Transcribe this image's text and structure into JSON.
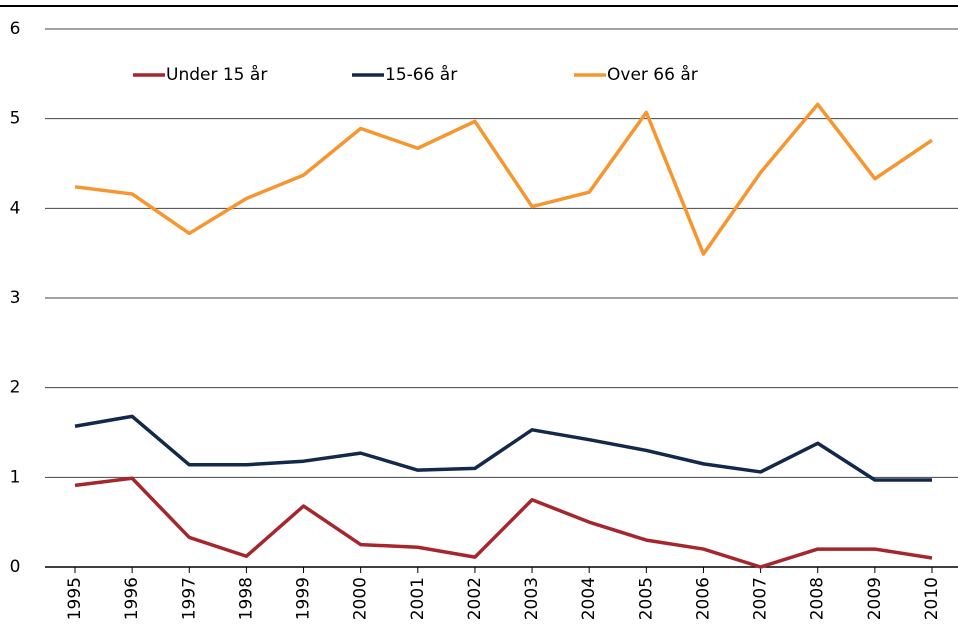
{
  "chart_data": {
    "type": "line",
    "categories": [
      "1995",
      "1996",
      "1997",
      "1998",
      "1999",
      "2000",
      "2001",
      "2002",
      "2003",
      "2004",
      "2005",
      "2006",
      "2007",
      "2008",
      "2009",
      "2010"
    ],
    "series": [
      {
        "name": "Under 15 år",
        "color": "#a5272d",
        "values": [
          0.91,
          0.99,
          0.33,
          0.12,
          0.68,
          0.25,
          0.22,
          0.11,
          0.75,
          0.5,
          0.3,
          0.2,
          0,
          0.2,
          0.2,
          0.1
        ]
      },
      {
        "name": "15-66 år",
        "color": "#13294b",
        "values": [
          1.57,
          1.68,
          1.14,
          1.14,
          1.18,
          1.27,
          1.08,
          1.1,
          1.53,
          1.42,
          1.3,
          1.15,
          1.06,
          1.38,
          0.97,
          0.97
        ]
      },
      {
        "name": "Over 66 år",
        "color": "#f7952f",
        "values": [
          4.24,
          4.16,
          3.72,
          4.11,
          4.37,
          4.89,
          4.67,
          4.97,
          4.02,
          4.18,
          5.07,
          3.49,
          4.4,
          5.16,
          4.33,
          4.76
        ]
      }
    ],
    "ylim": [
      0,
      6
    ],
    "yticks": [
      0,
      1,
      2,
      3,
      4,
      5,
      6
    ],
    "grid": true,
    "legend": "top"
  }
}
